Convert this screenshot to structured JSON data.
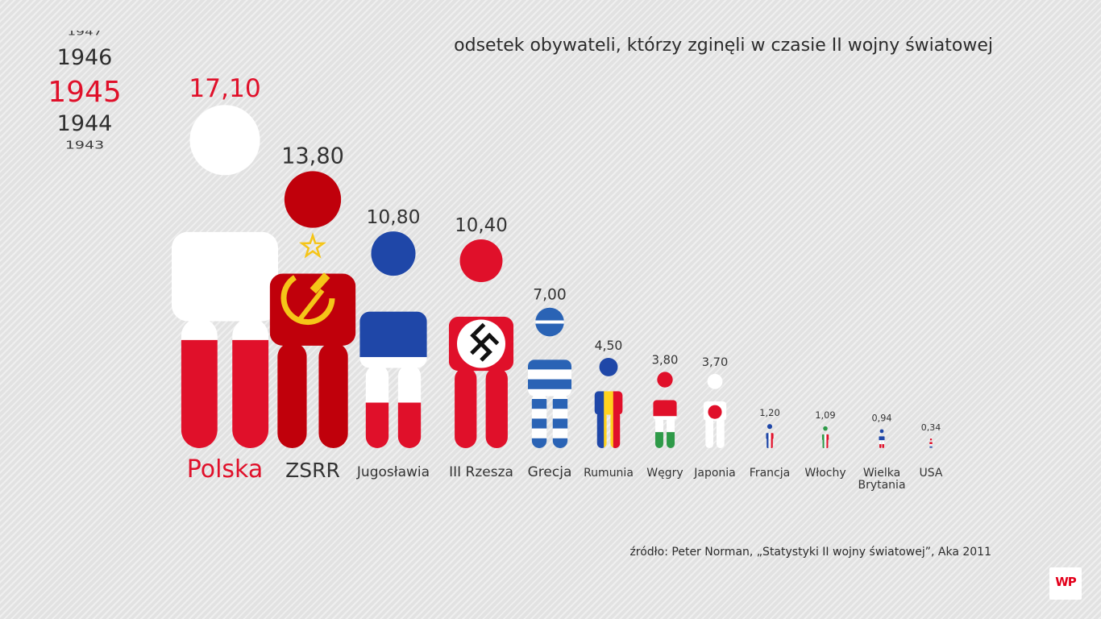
{
  "year_picker": {
    "years": [
      "1947",
      "1946",
      "1945",
      "1944",
      "1943"
    ],
    "selected": "1945"
  },
  "chart_title": "odsetek obywateli, którzy zginęli w czasie II wojny światowej",
  "source": "źródło: Peter Norman, „Statystyki II wojny światowej”, Aka 2011",
  "logo_text": "WP",
  "chart_data": {
    "type": "bar",
    "title": "odsetek obywateli, którzy zginęli w czasie II wojny światowej",
    "categories": [
      "Polska",
      "ZSRR",
      "Jugosławia",
      "III Rzesza",
      "Grecja",
      "Rumunia",
      "Węgry",
      "Japonia",
      "Francja",
      "Włochy",
      "Wielka Brytania",
      "USA"
    ],
    "values": [
      17.1,
      13.8,
      10.8,
      10.4,
      7.0,
      4.5,
      3.8,
      3.7,
      1.2,
      1.09,
      0.94,
      0.34
    ],
    "value_labels": [
      "17,10",
      "13,80",
      "10,80",
      "10,40",
      "7,00",
      "4,50",
      "3,80",
      "3,70",
      "1,20",
      "1,09",
      "0,94",
      "0,34"
    ],
    "label_lines": [
      [
        "Polska"
      ],
      [
        "ZSRR"
      ],
      [
        "Jugosławia"
      ],
      [
        "III Rzesza"
      ],
      [
        "Grecja"
      ],
      [
        "Rumunia"
      ],
      [
        "Węgry"
      ],
      [
        "Japonia"
      ],
      [
        "Francja"
      ],
      [
        "Włochy"
      ],
      [
        "Wielka",
        "Brytania"
      ],
      [
        "USA"
      ]
    ],
    "flags": [
      "poland",
      "ussr",
      "yugoslavia",
      "third-reich",
      "greece",
      "romania",
      "hungary",
      "japan",
      "france",
      "italy",
      "united-kingdom",
      "usa"
    ],
    "highlight_category": "Polska",
    "mark": "person-figure",
    "colors": {
      "highlight": "#e0102a",
      "text": "#333333",
      "white": "#ffffff",
      "red": "#e0102a",
      "dark_red": "#c0000b",
      "blue": "#1f47a8",
      "yellow": "#ffd31f",
      "green": "#2e9a48",
      "greek_blue": "#2a63b5",
      "ussr_gold": "#f5c518",
      "black": "#111111",
      "light_blue": "#6e8fd0"
    }
  }
}
